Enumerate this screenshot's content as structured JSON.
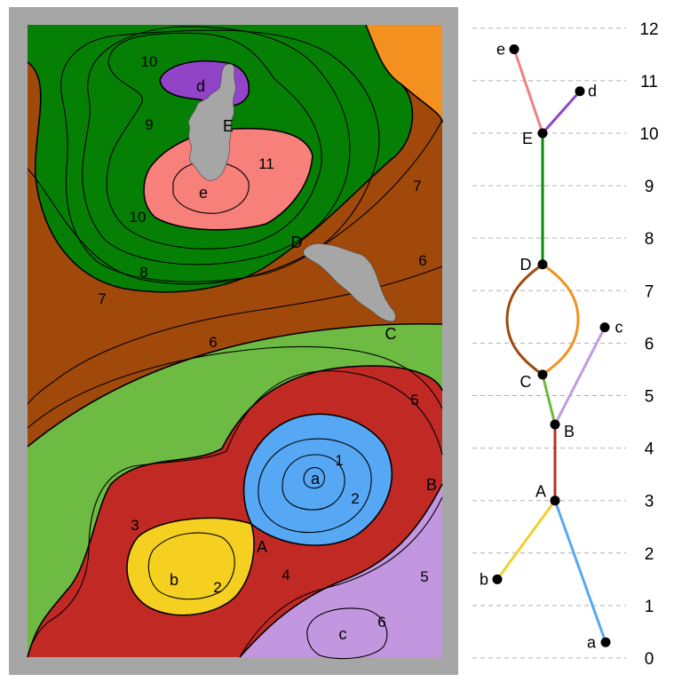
{
  "colors": {
    "frame": "#a6a6a6",
    "outline": "#000000",
    "grid_line": "#b0b0b0",
    "node": "#000000",
    "region_orange": "#f39020",
    "region_brown": "#a0490a",
    "region_dark_green": "#058005",
    "region_light_green": "#6dbb42",
    "region_red": "#c12a24",
    "region_blue": "#56a8f5",
    "region_yellow": "#f5d020",
    "region_lavender": "#c396e0",
    "region_purple": "#9144c8",
    "region_pink": "#f7807a",
    "region_gray": "#a6a6a6",
    "edge_e": "#f28080",
    "edge_d": "#9046c8",
    "edge_ED": "#0a8a0a",
    "edge_DC_left": "#9e4a0e",
    "edge_DC_right": "#f0921e",
    "edge_c": "#c39ae0",
    "edge_CB": "#6cbb3c",
    "edge_BA": "#b5312a",
    "edge_b": "#f0d030",
    "edge_a": "#58a8f0"
  },
  "map": {
    "contour_labels": [
      "10",
      "9",
      "10",
      "8",
      "7",
      "11",
      "7",
      "6",
      "6",
      "5",
      "1",
      "2",
      "3",
      "2",
      "4",
      "5",
      "6"
    ],
    "point_labels": [
      "d",
      "E",
      "e",
      "D",
      "C",
      "a",
      "B",
      "A",
      "b",
      "c"
    ]
  },
  "merge_tree": {
    "scale_ticks": [
      "12",
      "11",
      "10",
      "9",
      "8",
      "7",
      "6",
      "5",
      "4",
      "3",
      "2",
      "1",
      "0"
    ],
    "tick_values": [
      12,
      11,
      10,
      9,
      8,
      7,
      6,
      5,
      4,
      3,
      2,
      1,
      0
    ],
    "nodes": [
      {
        "label": "e",
        "value": 11.6
      },
      {
        "label": "d",
        "value": 10.8
      },
      {
        "label": "E",
        "value": 10.0
      },
      {
        "label": "D",
        "value": 7.5
      },
      {
        "label": "c",
        "value": 6.3
      },
      {
        "label": "C",
        "value": 5.4
      },
      {
        "label": "B",
        "value": 4.45
      },
      {
        "label": "A",
        "value": 3.0
      },
      {
        "label": "b",
        "value": 1.5
      },
      {
        "label": "a",
        "value": 0.3
      }
    ]
  }
}
